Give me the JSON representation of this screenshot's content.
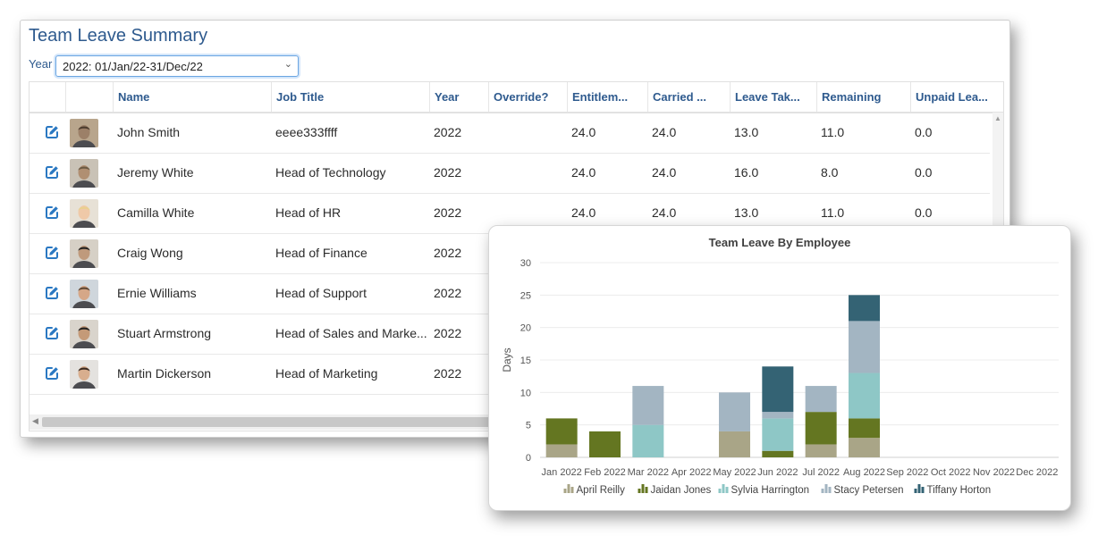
{
  "page": {
    "title": "Team Leave Summary"
  },
  "filter": {
    "year_label": "Year",
    "year_value": "2022: 01/Jan/22-31/Dec/22"
  },
  "table": {
    "headers": [
      "Name",
      "Job Title",
      "Year",
      "Override?",
      "Entitlem...",
      "Carried ...",
      "Leave Tak...",
      "Remaining",
      "Unpaid Lea..."
    ],
    "rows": [
      {
        "name": "John Smith",
        "job": "eeee333ffff",
        "year": "2022",
        "override": "",
        "entitlement": "24.0",
        "carried": "24.0",
        "taken": "13.0",
        "remaining": "11.0",
        "unpaid": "0.0"
      },
      {
        "name": "Jeremy White",
        "job": "Head of Technology",
        "year": "2022",
        "override": "",
        "entitlement": "24.0",
        "carried": "24.0",
        "taken": "16.0",
        "remaining": "8.0",
        "unpaid": "0.0"
      },
      {
        "name": "Camilla White",
        "job": "Head of HR",
        "year": "2022",
        "override": "",
        "entitlement": "24.0",
        "carried": "24.0",
        "taken": "13.0",
        "remaining": "11.0",
        "unpaid": "0.0"
      },
      {
        "name": "Craig Wong",
        "job": "Head of Finance",
        "year": "2022",
        "override": "",
        "entitlement": "",
        "carried": "",
        "taken": "",
        "remaining": "",
        "unpaid": ""
      },
      {
        "name": "Ernie Williams",
        "job": "Head of Support",
        "year": "2022",
        "override": "",
        "entitlement": "",
        "carried": "",
        "taken": "",
        "remaining": "",
        "unpaid": ""
      },
      {
        "name": "Stuart Armstrong",
        "job": "Head of Sales and Marke...",
        "year": "2022",
        "override": "",
        "entitlement": "",
        "carried": "",
        "taken": "",
        "remaining": "",
        "unpaid": ""
      },
      {
        "name": "Martin Dickerson",
        "job": "Head of Marketing",
        "year": "2022",
        "override": "",
        "entitlement": "",
        "carried": "",
        "taken": "",
        "remaining": "",
        "unpaid": ""
      }
    ]
  },
  "chart_data": {
    "type": "bar",
    "stacked": true,
    "title": "Team Leave By Employee",
    "xlabel": "",
    "ylabel": "Days",
    "ylim": [
      0,
      30
    ],
    "yticks": [
      0,
      5,
      10,
      15,
      20,
      25,
      30
    ],
    "grid": true,
    "legend_position": "bottom",
    "categories": [
      "Jan 2022",
      "Feb 2022",
      "Mar 2022",
      "Apr 2022",
      "May 2022",
      "Jun 2022",
      "Jul 2022",
      "Aug 2022",
      "Sep 2022",
      "Oct 2022",
      "Nov 2022",
      "Dec 2022"
    ],
    "series": [
      {
        "name": "April Reilly",
        "color": "#a9a587",
        "values": [
          2,
          0,
          0,
          0,
          4,
          0,
          2,
          3,
          0,
          0,
          0,
          0
        ]
      },
      {
        "name": "Jaidan Jones",
        "color": "#647621",
        "values": [
          4,
          4,
          0,
          0,
          0,
          1,
          5,
          3,
          0,
          0,
          0,
          0
        ]
      },
      {
        "name": "Sylvia Harrington",
        "color": "#8ec7c6",
        "values": [
          0,
          0,
          5,
          0,
          0,
          5,
          0,
          7,
          0,
          0,
          0,
          0
        ]
      },
      {
        "name": "Stacy Petersen",
        "color": "#a3b5c2",
        "values": [
          0,
          0,
          6,
          0,
          6,
          1,
          4,
          8,
          0,
          0,
          0,
          0
        ]
      },
      {
        "name": "Tiffany Horton",
        "color": "#346374",
        "values": [
          0,
          0,
          0,
          0,
          0,
          7,
          0,
          4,
          0,
          0,
          0,
          0
        ]
      }
    ]
  },
  "colors": {
    "accent": "#2e5a8e",
    "edit_icon": "#2a78c2"
  },
  "icons": {
    "edit": "edit-icon",
    "avatar": "avatar",
    "dropdown": "chevron-down-icon"
  }
}
